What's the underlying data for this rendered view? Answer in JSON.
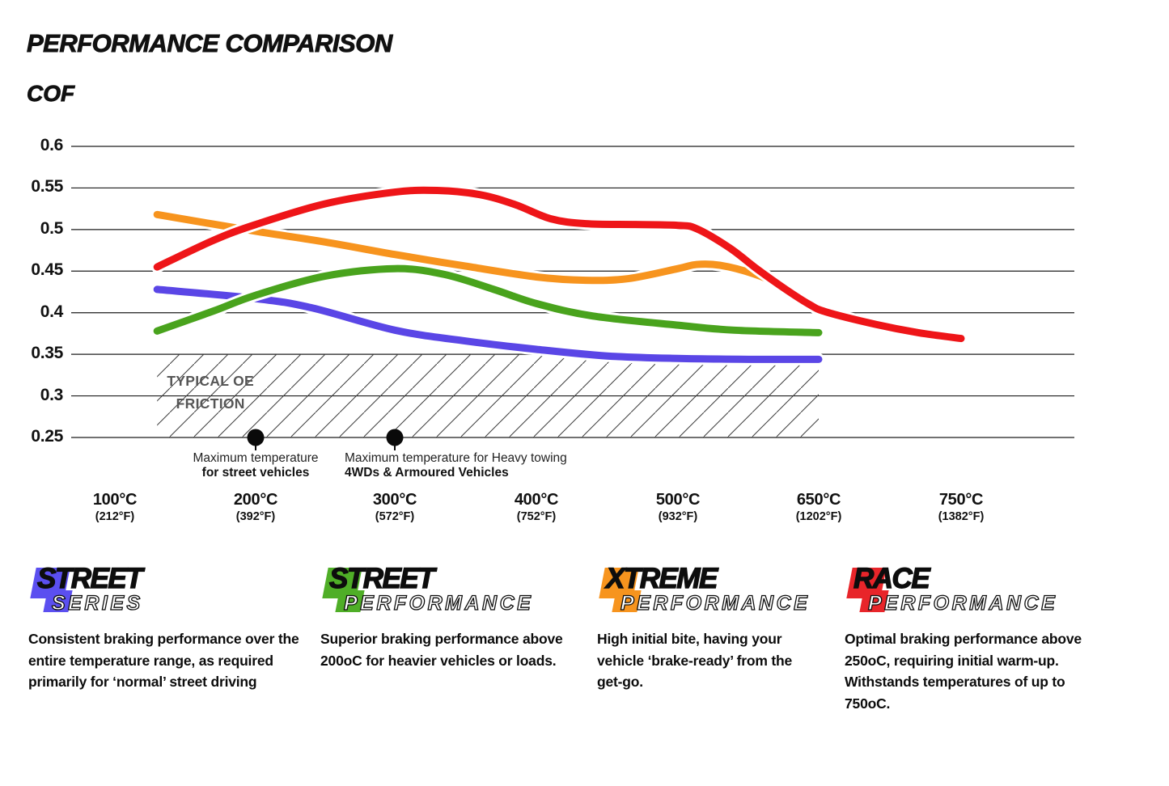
{
  "title": "PERFORMANCE COMPARISON",
  "y_axis_title": "COF",
  "chart_data": {
    "type": "line",
    "title": "PERFORMANCE COMPARISON",
    "ylabel": "COF",
    "ylim": [
      0.25,
      0.6
    ],
    "grid": "horizontal",
    "y_ticks": [
      0.6,
      0.55,
      0.5,
      0.45,
      0.4,
      0.35,
      0.3,
      0.25
    ],
    "x_ticks": [
      {
        "t": 100,
        "c": "100°C",
        "f": "(212°F)"
      },
      {
        "t": 200,
        "c": "200°C",
        "f": "(392°F)"
      },
      {
        "t": 300,
        "c": "300°C",
        "f": "(572°F)"
      },
      {
        "t": 400,
        "c": "400°C",
        "f": "(752°F)"
      },
      {
        "t": 500,
        "c": "500°C",
        "f": "(932°F)"
      },
      {
        "t": 650,
        "c": "650°C",
        "f": "(1202°F)"
      },
      {
        "t": 750,
        "c": "750°C",
        "f": "(1382°F)"
      }
    ],
    "series": [
      {
        "name": "Street Series",
        "color": "#5a46e6",
        "points": [
          [
            130,
            0.428
          ],
          [
            200,
            0.417
          ],
          [
            240,
            0.406
          ],
          [
            300,
            0.379
          ],
          [
            350,
            0.366
          ],
          [
            400,
            0.356
          ],
          [
            450,
            0.348
          ],
          [
            500,
            0.345
          ],
          [
            575,
            0.344
          ],
          [
            650,
            0.344
          ]
        ]
      },
      {
        "name": "Street Performance",
        "color": "#49a31d",
        "points": [
          [
            130,
            0.378
          ],
          [
            170,
            0.402
          ],
          [
            200,
            0.421
          ],
          [
            250,
            0.444
          ],
          [
            300,
            0.453
          ],
          [
            335,
            0.446
          ],
          [
            370,
            0.428
          ],
          [
            400,
            0.411
          ],
          [
            440,
            0.396
          ],
          [
            500,
            0.385
          ],
          [
            560,
            0.379
          ],
          [
            650,
            0.376
          ]
        ]
      },
      {
        "name": "Xtreme Performance",
        "color": "#f7941e",
        "points": [
          [
            130,
            0.518
          ],
          [
            200,
            0.498
          ],
          [
            250,
            0.485
          ],
          [
            300,
            0.47
          ],
          [
            350,
            0.456
          ],
          [
            400,
            0.443
          ],
          [
            435,
            0.439
          ],
          [
            465,
            0.441
          ],
          [
            500,
            0.453
          ],
          [
            520,
            0.458
          ],
          [
            545,
            0.457
          ],
          [
            580,
            0.447
          ],
          [
            612,
            0.432
          ],
          [
            648,
            0.406
          ]
        ]
      },
      {
        "name": "Race Performance",
        "color": "#ee1518",
        "points": [
          [
            130,
            0.455
          ],
          [
            170,
            0.487
          ],
          [
            200,
            0.506
          ],
          [
            250,
            0.531
          ],
          [
            300,
            0.545
          ],
          [
            330,
            0.547
          ],
          [
            360,
            0.542
          ],
          [
            385,
            0.53
          ],
          [
            410,
            0.513
          ],
          [
            435,
            0.507
          ],
          [
            470,
            0.506
          ],
          [
            500,
            0.505
          ],
          [
            520,
            0.501
          ],
          [
            555,
            0.478
          ],
          [
            585,
            0.452
          ],
          [
            615,
            0.428
          ],
          [
            640,
            0.41
          ],
          [
            655,
            0.401
          ],
          [
            690,
            0.386
          ],
          [
            720,
            0.376
          ],
          [
            750,
            0.369
          ]
        ]
      }
    ],
    "oe_band": {
      "label_line1": "TYPICAL OE",
      "label_line2": "FRICTION",
      "from": 0.25,
      "to": 0.35,
      "t_from": 130,
      "t_to": 650
    },
    "markers": [
      {
        "t": 200,
        "line1": "Maximum temperature",
        "line2": "for street vehicles",
        "align": "center"
      },
      {
        "t": 300,
        "line1": "Maximum temperature for Heavy towing",
        "line2": "4WDs & Armoured Vehicles",
        "align": "left"
      }
    ]
  },
  "legend": [
    {
      "word1": "STREET",
      "word2": "SERIES",
      "color": "#5b4ff0",
      "desc": "Consistent braking performance over the entire temperature range, as required primarily for ‘normal’ street driving"
    },
    {
      "word1": "STREET",
      "word2": "PERFORMANCE",
      "color": "#4fae27",
      "desc": "Superior braking performance above 200oC for heavier vehicles or loads."
    },
    {
      "word1": "XTREME",
      "word2": "PERFORMANCE",
      "color": "#f7941e",
      "desc": "High initial bite, having your vehicle ‘brake-ready’ from the get-go."
    },
    {
      "word1": "RACE",
      "word2": "PERFORMANCE",
      "color": "#e8252a",
      "desc": "Optimal braking performance above 250oC, requiring initial warm-up. Withstands temperatures of up to 750oC."
    }
  ]
}
